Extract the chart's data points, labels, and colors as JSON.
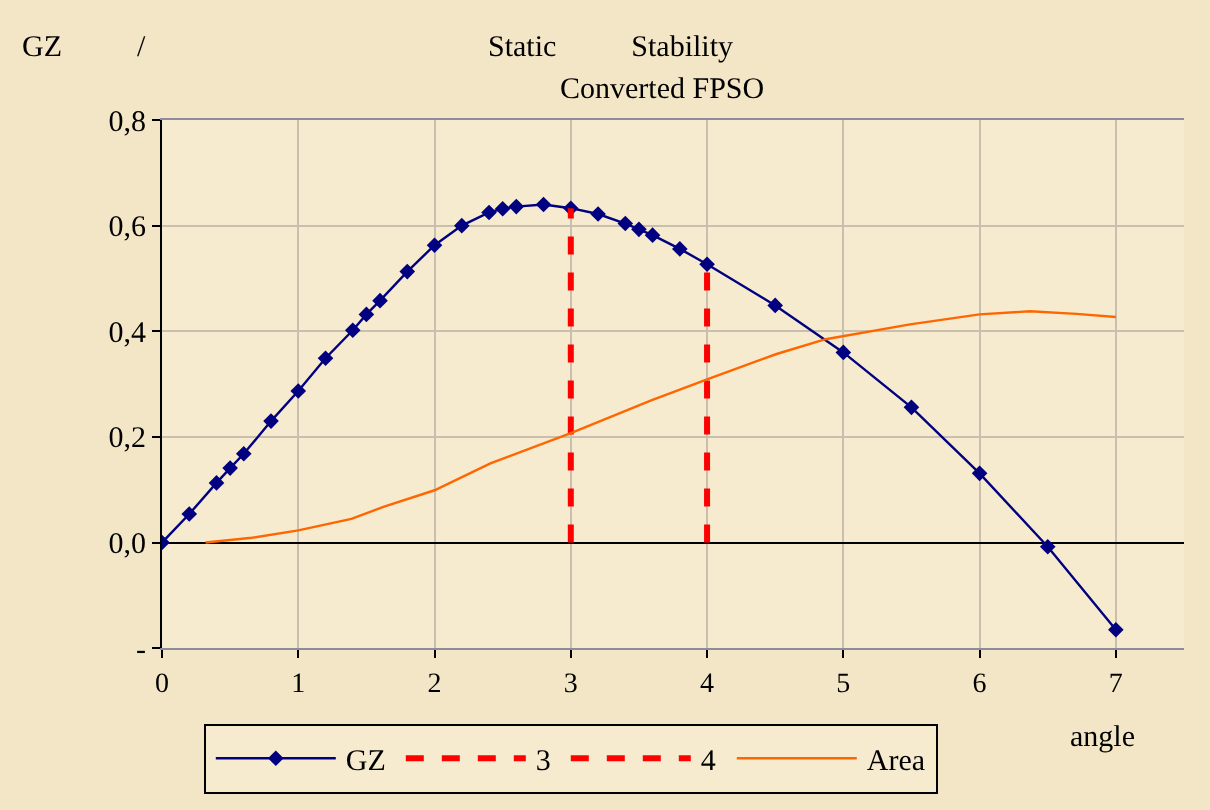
{
  "chart_data": {
    "type": "line",
    "title": "Static          Stability",
    "subtitle": "Converted FPSO",
    "ylabel": "GZ          /",
    "xlabel": "angle",
    "xlim": [
      0,
      7.5
    ],
    "xticks": [
      0,
      1,
      2,
      3,
      4,
      5,
      6,
      7
    ],
    "ylim": [
      -0.2,
      0.8
    ],
    "yticks": [
      {
        "value": -0.2,
        "label": "-"
      },
      {
        "value": 0,
        "label": "0,0"
      },
      {
        "value": 0.2,
        "label": "0,2"
      },
      {
        "value": 0.4,
        "label": "0,4"
      },
      {
        "value": 0.6,
        "label": "0,6"
      },
      {
        "value": 0.8,
        "label": "0,8"
      }
    ],
    "grid": true,
    "legend": "bottom",
    "series": [
      {
        "name": "GZ",
        "color": "#000080",
        "marker": "diamond",
        "line_style": "solid",
        "x": [
          0,
          0.2,
          0.4,
          0.5,
          0.6,
          0.8,
          1.0,
          1.2,
          1.4,
          1.5,
          1.6,
          1.8,
          2.0,
          2.2,
          2.4,
          2.5,
          2.6,
          2.8,
          3.0,
          3.2,
          3.4,
          3.5,
          3.6,
          3.8,
          4.0,
          4.5,
          5.0,
          5.5,
          6.0,
          6.5,
          7.0
        ],
        "values": [
          0,
          0.054,
          0.113,
          0.141,
          0.168,
          0.23,
          0.287,
          0.349,
          0.402,
          0.432,
          0.458,
          0.513,
          0.563,
          0.6,
          0.625,
          0.632,
          0.636,
          0.64,
          0.633,
          0.622,
          0.604,
          0.593,
          0.582,
          0.556,
          0.527,
          0.449,
          0.36,
          0.256,
          0.131,
          -0.008,
          -0.165
        ]
      },
      {
        "name": "3",
        "color": "#ff0000",
        "marker": "none",
        "line_style": "dashed",
        "x": [
          3,
          3
        ],
        "values": [
          0,
          0.633
        ]
      },
      {
        "name": "4",
        "color": "#ff0000",
        "marker": "none",
        "line_style": "dashed",
        "x": [
          4,
          4
        ],
        "values": [
          0,
          0.527
        ]
      },
      {
        "name": "Area",
        "color": "#ff6600",
        "marker": "none",
        "line_style": "solid",
        "x": [
          0.32,
          0.66,
          1.0,
          1.39,
          1.63,
          2.0,
          2.41,
          3.0,
          3.59,
          4.0,
          4.51,
          4.87,
          5.49,
          6.0,
          6.37,
          6.71,
          7.0
        ],
        "values": [
          0,
          0.009,
          0.023,
          0.045,
          0.068,
          0.099,
          0.15,
          0.207,
          0.269,
          0.309,
          0.357,
          0.385,
          0.413,
          0.432,
          0.438,
          0.433,
          0.427
        ]
      }
    ]
  }
}
